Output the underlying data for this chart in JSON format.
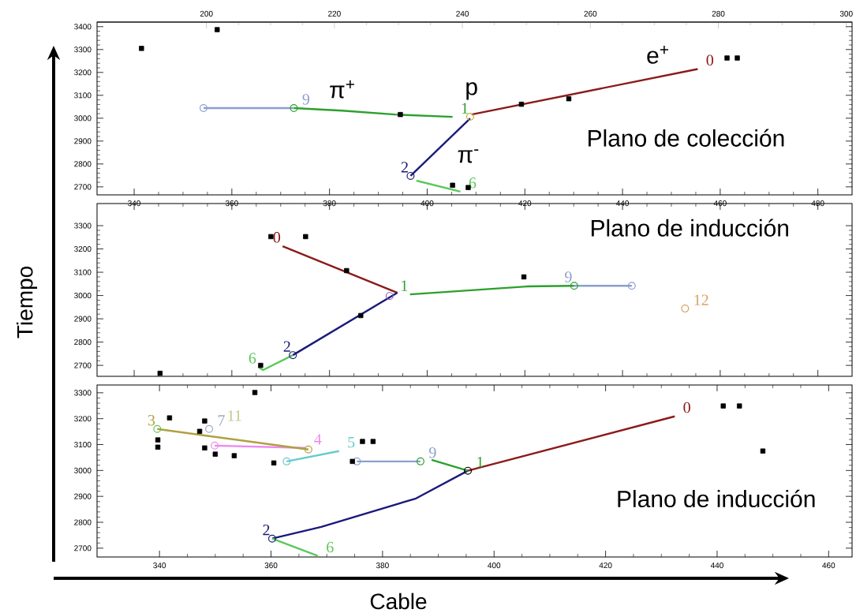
{
  "chart_data": [
    {
      "type": "line",
      "title": "Plano de colección",
      "xlim": [
        332.4,
        487
      ],
      "xticks": [
        340,
        360,
        380,
        400,
        420,
        440,
        460,
        480
      ],
      "x2lim": [
        182.9,
        300.9
      ],
      "x2ticks": [
        200,
        220,
        240,
        260,
        280,
        300
      ],
      "ylim": [
        2665,
        3420
      ],
      "yticks": [
        2700,
        2800,
        2900,
        3000,
        3100,
        3200,
        3300,
        3400
      ],
      "series": [
        {
          "name": "9",
          "type": "line",
          "color": "#8aa0d0",
          "x": [
            372.7,
            354.2
          ],
          "values": [
            3044,
            3044
          ]
        },
        {
          "name": "1",
          "type": "line",
          "color": "#2ca02c",
          "x": [
            405.2,
            393.4,
            382.6,
            372.7
          ],
          "values": [
            3006,
            3016,
            3033,
            3044
          ]
        },
        {
          "name": "0",
          "type": "line",
          "color": "#8b1a1a",
          "x": [
            455.4,
            409.1
          ],
          "values": [
            3215,
            3016
          ]
        },
        {
          "name": "2",
          "type": "line",
          "color": "#1a1a7a",
          "x": [
            396.6,
            408.8
          ],
          "values": [
            2748,
            2999
          ]
        },
        {
          "name": "6",
          "type": "line",
          "color": "#5cc85c",
          "x": [
            406.8,
            397.8
          ],
          "values": [
            2679,
            2727
          ]
        },
        {
          "type": "scatter",
          "marker": "circle",
          "x": [
            354.2,
            372.7,
            408.8,
            396.6
          ],
          "values": [
            3044,
            3044,
            3006,
            2748
          ],
          "colors": [
            "#8aa0d0",
            "#2ca02c",
            "#c8b040",
            "#1a1a7a"
          ]
        },
        {
          "type": "scatter",
          "marker": "square",
          "color": "#000000",
          "x": [
            341.5,
            357,
            461.4,
            463.5,
            429,
            394.5,
            419.3,
            405.2,
            408.4
          ],
          "values": [
            3305,
            3387,
            3263,
            3263,
            3085,
            3016,
            3061,
            2707,
            2697
          ]
        }
      ],
      "annotations": [
        "π$^{+}$",
        "p",
        "π$^{-}$",
        "e$^{+}$"
      ]
    },
    {
      "type": "line",
      "title": "Plano de inducción",
      "ylabel": "Tiempo",
      "xlim": [
        332.4,
        487
      ],
      "xticks": [
        340,
        360,
        380,
        400,
        420,
        440,
        460,
        480
      ],
      "ylim": [
        2653,
        3395
      ],
      "yticks": [
        2700,
        2800,
        2900,
        3000,
        3100,
        3200,
        3300
      ],
      "tick_labels": "y",
      "series": [
        {
          "name": "0",
          "type": "line",
          "color": "#8b1a1a",
          "x": [
            370.4,
            393.9
          ],
          "values": [
            3212,
            3012
          ]
        },
        {
          "name": "2",
          "type": "line",
          "color": "#1a1a7a",
          "x": [
            372.5,
            393.9
          ],
          "values": [
            2744,
            3012
          ]
        },
        {
          "name": "6",
          "type": "line",
          "color": "#5cc85c",
          "x": [
            365.4,
            366.4,
            372.5
          ],
          "values": [
            2693,
            2680,
            2744
          ]
        },
        {
          "name": "1",
          "type": "line",
          "color": "#2ca02c",
          "x": [
            396.5,
            420.4,
            430.1
          ],
          "values": [
            3005,
            3039,
            3042
          ]
        },
        {
          "name": "9",
          "type": "line",
          "color": "#8aa0d0",
          "x": [
            430.1,
            441.9
          ],
          "values": [
            3042,
            3042
          ]
        },
        {
          "name": "12",
          "type": "scatter",
          "marker": "circle",
          "color": "#d9a060",
          "x": [
            452.8
          ],
          "values": [
            2944
          ]
        },
        {
          "type": "scatter",
          "marker": "circle",
          "x": [
            372.5,
            392.3,
            430.1,
            441.9
          ],
          "values": [
            2744,
            2998,
            3042,
            3042
          ],
          "colors": [
            "#1a1a7a",
            "#9060c0",
            "#2ca02c",
            "#8aa0d0"
          ]
        },
        {
          "type": "scatter",
          "marker": "square",
          "color": "#000000",
          "x": [
            368,
            375.1,
            419.8,
            383.5,
            386.4,
            345.3,
            365.9
          ],
          "values": [
            3253,
            3253,
            3080,
            3107,
            2914,
            2666,
            2700
          ]
        }
      ]
    },
    {
      "type": "line",
      "title": "Plano de inducción",
      "xlabel": "Cable",
      "xlim": [
        328.8,
        464.2
      ],
      "xticks": [
        340,
        360,
        380,
        400,
        420,
        440,
        460
      ],
      "ylim": [
        2666,
        3330
      ],
      "yticks": [
        2700,
        2800,
        2900,
        3000,
        3100,
        3200,
        3300
      ],
      "series": [
        {
          "name": "0",
          "type": "line",
          "color": "#8b1a1a",
          "x": [
            432.4,
            395.3
          ],
          "values": [
            3209,
            2999
          ]
        },
        {
          "name": "2",
          "type": "line",
          "color": "#1a1a7a",
          "x": [
            360.2,
            369,
            386,
            395.3
          ],
          "values": [
            2737,
            2782,
            2892,
            2999
          ]
        },
        {
          "name": "6",
          "type": "line",
          "color": "#5cc85c",
          "x": [
            368.4,
            360.2
          ],
          "values": [
            2670,
            2737
          ]
        },
        {
          "name": "1",
          "type": "line",
          "color": "#2ca02c",
          "x": [
            395.3,
            388.8
          ],
          "values": [
            2999,
            3041
          ]
        },
        {
          "name": "9",
          "type": "line",
          "color": "#8aa0d0",
          "x": [
            386.8,
            375.4
          ],
          "values": [
            3035,
            3035
          ]
        },
        {
          "name": "5",
          "type": "line",
          "color": "#66cccc",
          "x": [
            372.2,
            362.8
          ],
          "values": [
            3075,
            3035
          ]
        },
        {
          "name": "4",
          "type": "line",
          "color": "#ee88ee",
          "x": [
            366.2,
            349.9
          ],
          "values": [
            3087,
            3096
          ]
        },
        {
          "name": "3",
          "type": "line",
          "color": "#b0a040",
          "x": [
            339.6,
            366.7
          ],
          "values": [
            3160,
            3081
          ]
        },
        {
          "name": "7",
          "type": "scatter",
          "marker": "circle",
          "color": "#a0a8c0",
          "x": [
            348.9
          ],
          "values": [
            3160
          ]
        },
        {
          "type": "scatter",
          "marker": "circle",
          "x": [
            339.6,
            349.9,
            366.7,
            362.8,
            375.4,
            386.8,
            360.2,
            395.3
          ],
          "values": [
            3160,
            3096,
            3081,
            3035,
            3035,
            3035,
            2737,
            2999
          ],
          "colors": [
            "#5cc85c",
            "#ee88ee",
            "#b0a040",
            "#66cccc",
            "#8aa0d0",
            "#2ca02c",
            "#1a1a7a",
            "#000000"
          ]
        },
        {
          "type": "scatter",
          "marker": "square",
          "color": "#000000",
          "x": [
            341.8,
            339.7,
            339.7,
            348.1,
            347.2,
            348.1,
            350,
            353.4,
            357.1,
            360.5,
            376.4,
            378.3,
            374.6,
            441.1,
            444,
            448.2
          ],
          "values": [
            3203,
            3118,
            3090,
            3191,
            3151,
            3087,
            3063,
            3057,
            3301,
            3029,
            3112,
            3112,
            3035,
            3249,
            3249,
            3075
          ]
        }
      ],
      "annotations": [
        "11"
      ]
    }
  ]
}
